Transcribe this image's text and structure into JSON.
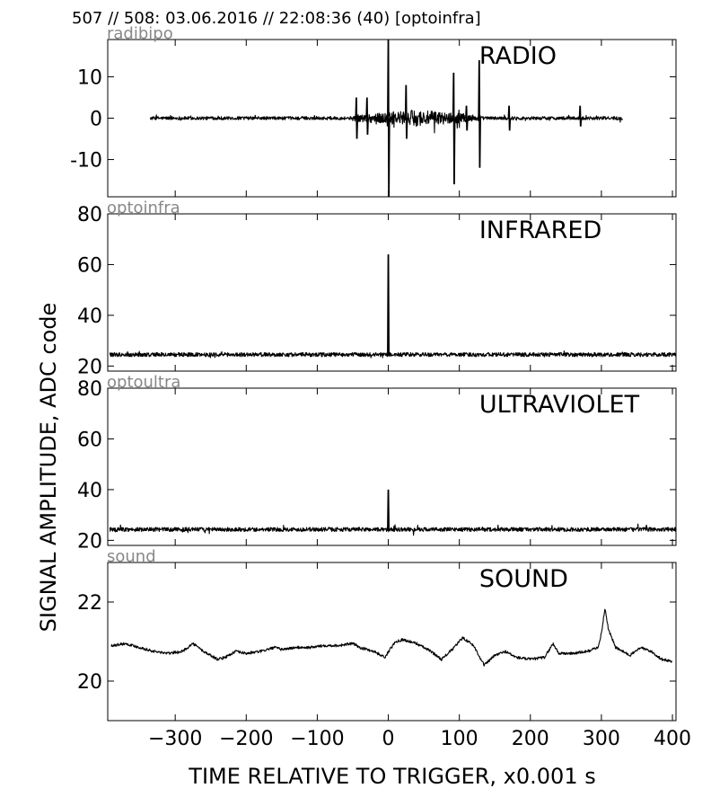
{
  "header": {
    "text": "507 // 508:   03.06.2016 // 22:08:36 (40)  [optoinfra]"
  },
  "colors": {
    "trace": "#000000",
    "subtitle": "#888888",
    "frame": "#000000",
    "background": "#ffffff"
  },
  "chart_data": {
    "type": "line",
    "xlabel": "TIME RELATIVE TO TRIGGER,   x0.001 s",
    "ylabel": "SIGNAL AMPLITUDE,  ADC code",
    "xlim": [
      -395,
      405
    ],
    "xticks": [
      -300,
      -200,
      -100,
      0,
      100,
      200,
      300,
      400
    ],
    "xtick_labels": [
      "−300",
      "−200",
      "−100",
      "0",
      "100",
      "200",
      "300",
      "400"
    ],
    "grid": false,
    "panels": [
      {
        "name": "radibipo",
        "title": "RADIO",
        "ylim": [
          -19,
          19
        ],
        "yticks": [
          -10,
          0,
          10
        ],
        "ytick_labels": [
          "-10",
          "0",
          "10"
        ],
        "trace": {
          "x_range": [
            -335,
            330
          ],
          "baseline": 0,
          "noise": 0.4,
          "burst_region": [
            -50,
            130
          ],
          "burst_noise": 2.0,
          "spikes": [
            {
              "x": 0,
              "min": -19,
              "max": 19
            },
            {
              "x": 25,
              "min": -5,
              "max": 8
            },
            {
              "x": 92,
              "min": -16,
              "max": 11
            },
            {
              "x": 128,
              "min": -12,
              "max": 14
            },
            {
              "x": -45,
              "min": -5,
              "max": 5
            },
            {
              "x": -30,
              "min": -4,
              "max": 5
            },
            {
              "x": 110,
              "min": -3,
              "max": 3
            },
            {
              "x": 170,
              "min": -3,
              "max": 3
            },
            {
              "x": 270,
              "min": -2,
              "max": 3
            }
          ]
        }
      },
      {
        "name": "optoinfra",
        "title": "INFRARED",
        "ylim": [
          18,
          80
        ],
        "yticks": [
          20,
          40,
          60,
          80
        ],
        "ytick_labels": [
          "20",
          "40",
          "60",
          "80"
        ],
        "trace": {
          "x_range": [
            -392,
            405
          ],
          "baseline": 24.5,
          "noise": 0.8,
          "spikes": [
            {
              "x": 0,
              "min": 24,
              "max": 64
            }
          ]
        }
      },
      {
        "name": "optoultra",
        "title": "ULTRAVIOLET",
        "ylim": [
          18,
          80
        ],
        "yticks": [
          20,
          40,
          60,
          80
        ],
        "ytick_labels": [
          "20",
          "40",
          "60",
          "80"
        ],
        "trace": {
          "x_range": [
            -392,
            405
          ],
          "baseline": 24.3,
          "noise": 0.8,
          "spikes": [
            {
              "x": 0,
              "min": 24,
              "max": 40
            }
          ]
        }
      },
      {
        "name": "sound",
        "title": "SOUND",
        "ylim": [
          19,
          23
        ],
        "yticks": [
          20,
          22
        ],
        "ytick_labels": [
          "20",
          "22"
        ],
        "trace": {
          "x": [
            -390,
            -370,
            -350,
            -330,
            -310,
            -290,
            -275,
            -260,
            -240,
            -230,
            -215,
            -200,
            -180,
            -160,
            -150,
            -130,
            -110,
            -90,
            -70,
            -50,
            -40,
            -20,
            -5,
            10,
            20,
            40,
            60,
            75,
            90,
            105,
            120,
            135,
            150,
            165,
            180,
            200,
            220,
            232,
            240,
            260,
            280,
            295,
            300,
            305,
            310,
            320,
            340,
            355,
            370,
            385,
            400
          ],
          "y": [
            20.9,
            20.95,
            20.85,
            20.75,
            20.7,
            20.75,
            20.95,
            20.75,
            20.55,
            20.6,
            20.75,
            20.7,
            20.75,
            20.85,
            20.8,
            20.85,
            20.85,
            20.9,
            20.9,
            20.95,
            20.85,
            20.75,
            20.6,
            21.0,
            21.05,
            20.95,
            20.75,
            20.55,
            20.8,
            21.1,
            20.9,
            20.4,
            20.65,
            20.75,
            20.6,
            20.55,
            20.6,
            20.95,
            20.7,
            20.7,
            20.75,
            20.85,
            21.2,
            21.85,
            21.3,
            20.85,
            20.65,
            20.85,
            20.75,
            20.55,
            20.5
          ],
          "noise": 0.035
        }
      }
    ]
  }
}
